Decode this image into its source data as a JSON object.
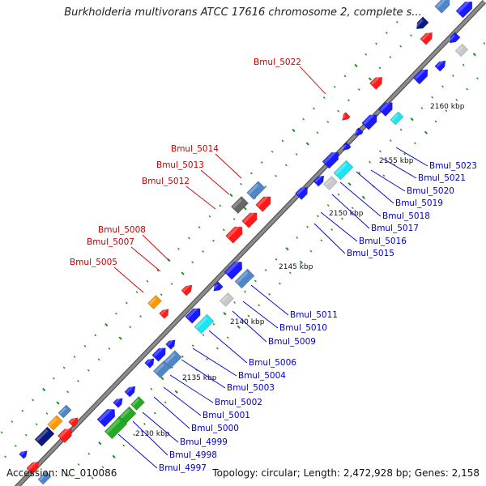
{
  "title": "Burkholderia multivorans ATCC 17616 chromosome 2, complete s...",
  "footer": {
    "accession": "Accession: NC_010086",
    "stats": "Topology: circular; Length: 2,472,928 bp; Genes: 2,158"
  },
  "colors": {
    "backbone": "#8c8c8c",
    "backbone_edge": "#555555",
    "dots": "#1f8f1f",
    "label_red": "#cc0000",
    "label_blue": "#0000cc",
    "gene_blue": "#1a1aff",
    "gene_red": "#ff1a1a",
    "gene_steel": "#4f86c6",
    "gene_gray": "#666666",
    "gene_lightgray": "#c8c8c8",
    "gene_cyan": "#19e6f0",
    "gene_green": "#22aa22",
    "gene_orange": "#ff9900",
    "gene_navy": "#0b1a80"
  },
  "kbp_ticks": [
    "2130 kbp",
    "2135 kbp",
    "2140 kbp",
    "2145 kbp",
    "2150 kbp",
    "2155 kbp",
    "2160 kbp"
  ],
  "gene_labels": [
    "Bmul_5022",
    "Bmul_5014",
    "Bmul_5013",
    "Bmul_5012",
    "Bmul_5008",
    "Bmul_5007",
    "Bmul_5005",
    "Bmul_5023",
    "Bmul_5021",
    "Bmul_5020",
    "Bmul_5019",
    "Bmul_5018",
    "Bmul_5017",
    "Bmul_5016",
    "Bmul_5015",
    "Bmul_5011",
    "Bmul_5010",
    "Bmul_5009",
    "Bmul_5006",
    "Bmul_5004",
    "Bmul_5003",
    "Bmul_5002",
    "Bmul_5001",
    "Bmul_5000",
    "Bmul_4999",
    "Bmul_4998",
    "Bmul_4997"
  ]
}
